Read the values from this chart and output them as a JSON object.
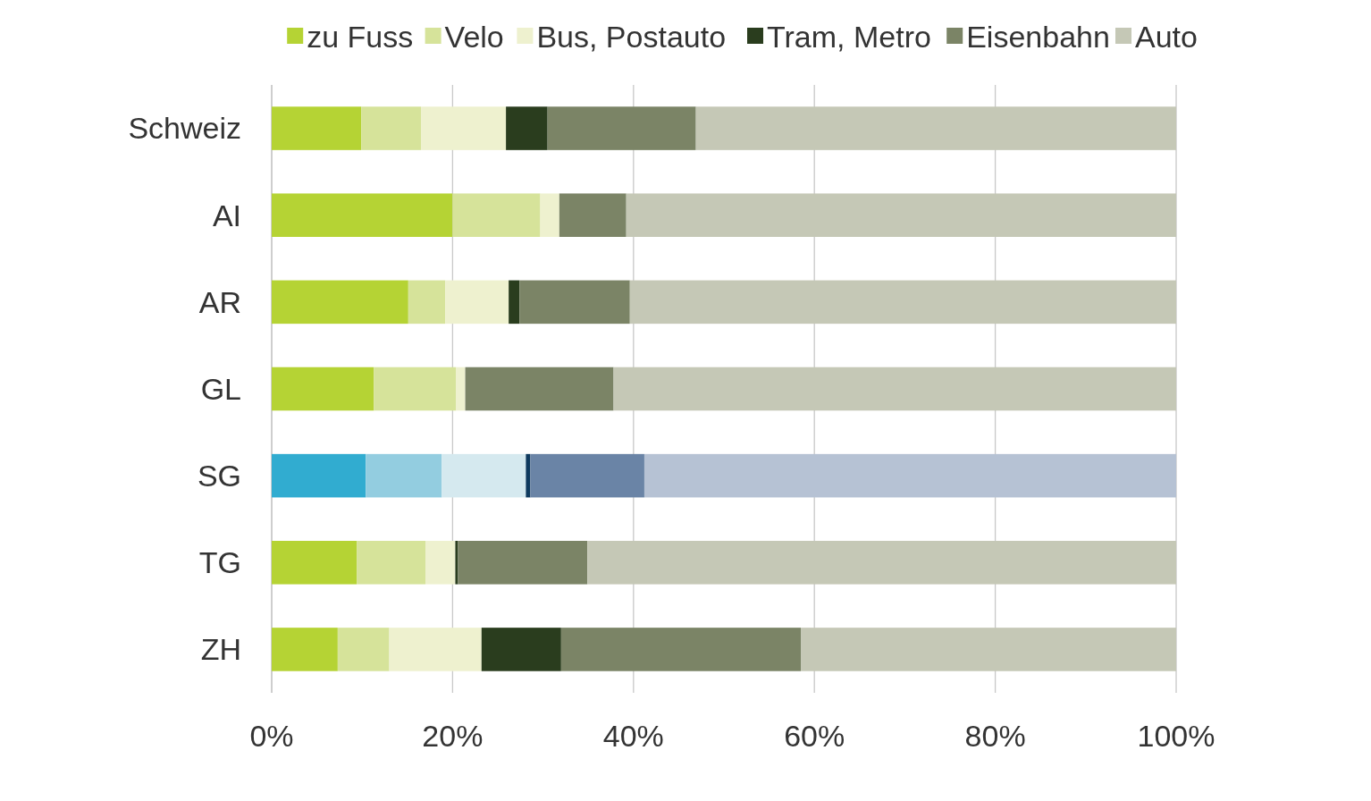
{
  "chart_data": {
    "type": "bar",
    "orientation": "horizontal",
    "stacked": true,
    "categories": [
      "Schweiz",
      "AI",
      "AR",
      "GL",
      "SG",
      "TG",
      "ZH"
    ],
    "series": [
      {
        "name": "zu Fuss",
        "color": "#b5d334",
        "colors": [
          "#b5d334",
          "#b5d334",
          "#b5d334",
          "#b5d334",
          "#31acd0",
          "#b5d334",
          "#b5d334"
        ],
        "values": [
          9.9,
          20.0,
          15.1,
          11.3,
          10.4,
          9.4,
          7.3
        ]
      },
      {
        "name": "Velo",
        "color": "#d6e39a",
        "colors": [
          "#d6e39a",
          "#d6e39a",
          "#d6e39a",
          "#d6e39a",
          "#93cde0",
          "#d6e39a",
          "#d6e39a"
        ],
        "values": [
          6.6,
          9.7,
          4.1,
          9.1,
          8.4,
          7.6,
          5.7
        ]
      },
      {
        "name": "Bus, Postauto",
        "color": "#eef1cf",
        "colors": [
          "#eef1cf",
          "#eef1cf",
          "#eef1cf",
          "#eef1cf",
          "#d5e9ef",
          "#eef1cf",
          "#eef1cf"
        ],
        "values": [
          9.4,
          2.1,
          7.0,
          1.0,
          9.3,
          3.3,
          10.2
        ]
      },
      {
        "name": "Tram, Metro",
        "color": "#2a3d1e",
        "colors": [
          "#2a3d1e",
          "#2a3d1e",
          "#2a3d1e",
          "#2a3d1e",
          "#0e3a5e",
          "#2a3d1e",
          "#2a3d1e"
        ],
        "values": [
          4.6,
          0,
          1.2,
          0,
          0.5,
          0.3,
          8.8
        ]
      },
      {
        "name": "Eisenbahn",
        "color": "#7b8466",
        "colors": [
          "#7b8466",
          "#7b8466",
          "#7b8466",
          "#7b8466",
          "#6a84a6",
          "#7b8466",
          "#7b8466"
        ],
        "values": [
          16.4,
          7.4,
          12.2,
          16.4,
          12.6,
          14.3,
          26.5
        ]
      },
      {
        "name": "Auto",
        "color": "#c5c8b6",
        "colors": [
          "#c5c8b6",
          "#c5c8b6",
          "#c5c8b6",
          "#c5c8b6",
          "#b6c2d4",
          "#c5c8b6",
          "#c5c8b6"
        ],
        "values": [
          53.1,
          60.8,
          60.4,
          62.2,
          58.8,
          65.1,
          41.5
        ]
      }
    ],
    "xlim": [
      0,
      100
    ],
    "xticks": [
      {
        "value": 0,
        "label": "0%"
      },
      {
        "value": 20,
        "label": "20%"
      },
      {
        "value": 40,
        "label": "40%"
      },
      {
        "value": 60,
        "label": "60%"
      },
      {
        "value": 80,
        "label": "80%"
      },
      {
        "value": 100,
        "label": "100%"
      }
    ],
    "grid": "x",
    "legend": "top"
  }
}
